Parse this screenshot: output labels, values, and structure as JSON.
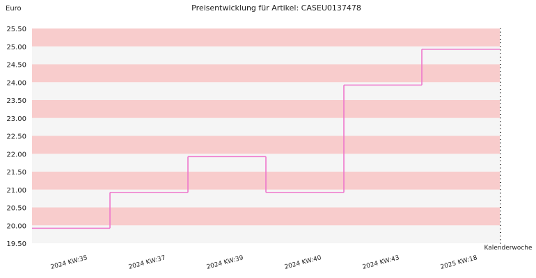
{
  "chart_data": {
    "type": "line",
    "step": true,
    "title": "Preisentwicklung für Artikel: CASEU0137478",
    "ylabel": "Euro",
    "xlabel": "Kalenderwoche",
    "ylim": [
      19.5,
      25.5
    ],
    "yticks": [
      "19.50",
      "20.00",
      "20.50",
      "21.00",
      "21.50",
      "22.00",
      "22.50",
      "23.00",
      "23.50",
      "24.00",
      "24.50",
      "25.00",
      "25.50"
    ],
    "categories": [
      "2024 KW:35",
      "2024 KW:37",
      "2024 KW:39",
      "2024 KW:40",
      "2024 KW:43",
      "2025 KW:18"
    ],
    "series": [
      {
        "values": [
          19.92,
          20.92,
          21.92,
          20.92,
          23.92,
          24.92
        ]
      }
    ],
    "band_colors": [
      "#f8cccc",
      "#f5f5f5"
    ],
    "line_color": "#ee77cc",
    "grid": false
  }
}
